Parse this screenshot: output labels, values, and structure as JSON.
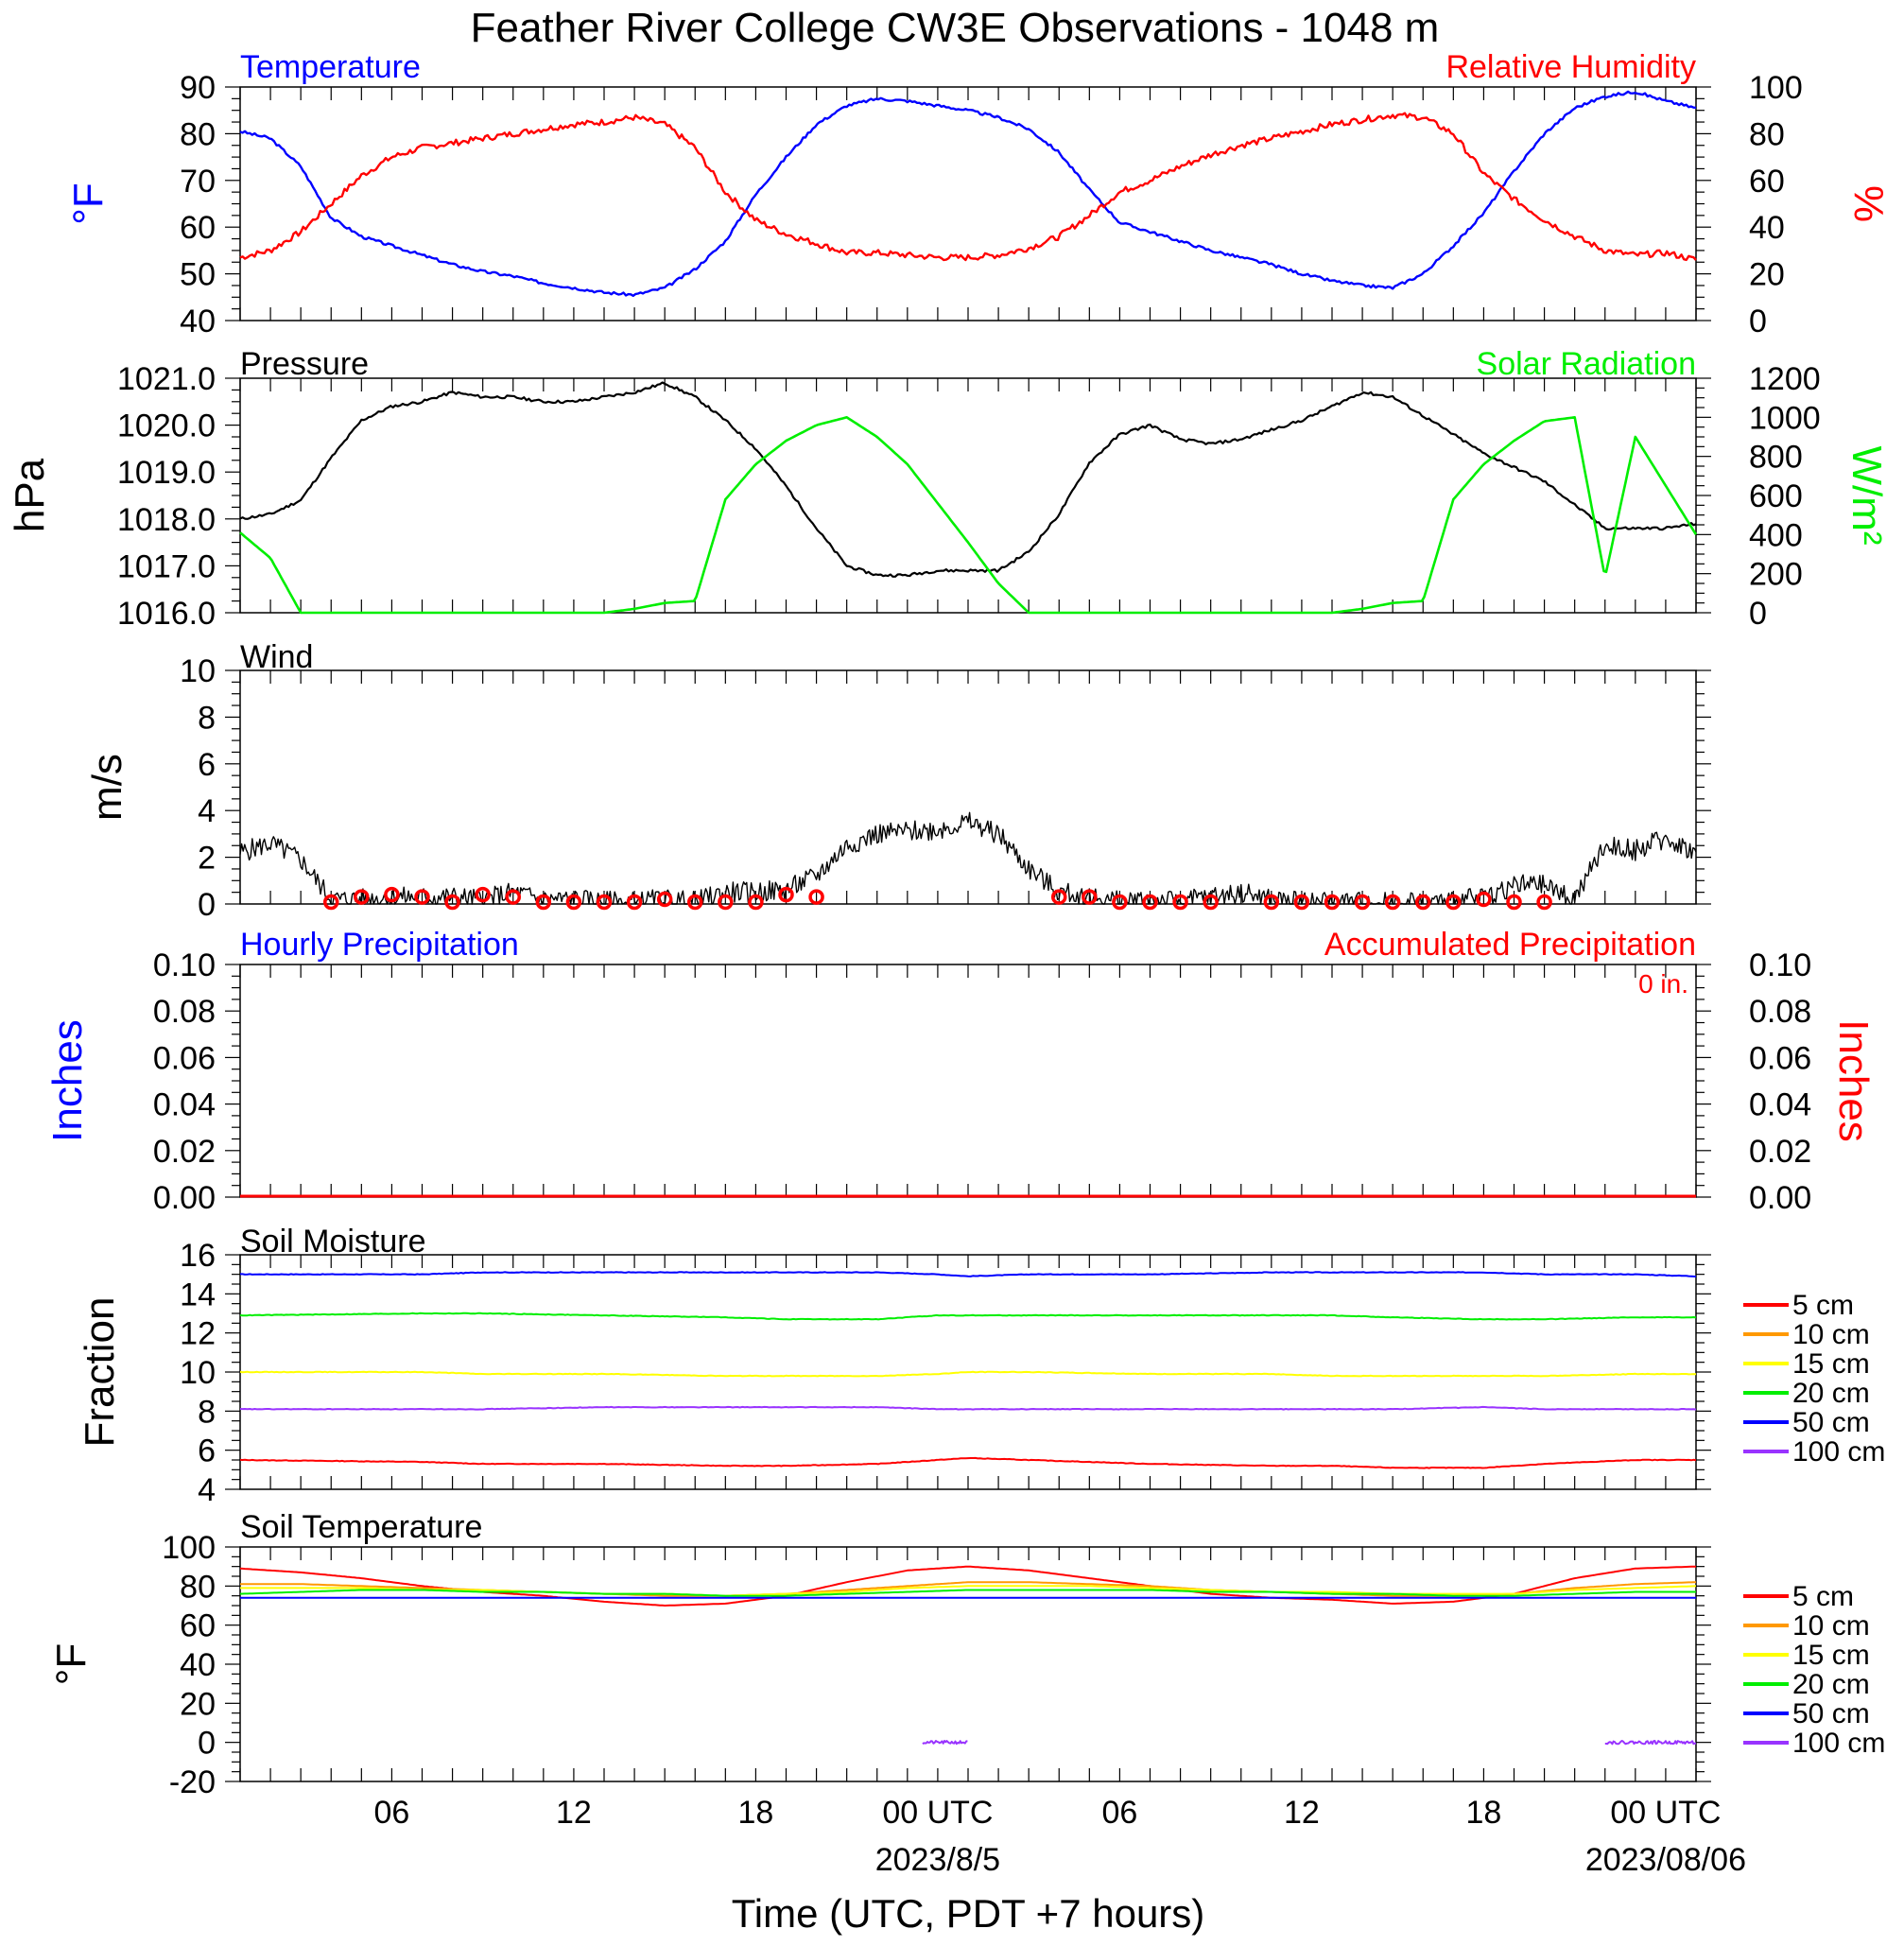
{
  "title": "Feather River College CW3E Observations - 1048 m",
  "x_axis": {
    "title": "Time (UTC, PDT +7 hours)",
    "start_hour": 1,
    "end_hour": 49,
    "tick_labels": [
      {
        "hour": 6,
        "label": "06"
      },
      {
        "hour": 12,
        "label": "12"
      },
      {
        "hour": 18,
        "label": "18"
      },
      {
        "hour": 24,
        "label": "00 UTC"
      },
      {
        "hour": 30,
        "label": "06"
      },
      {
        "hour": 36,
        "label": "12"
      },
      {
        "hour": 42,
        "label": "18"
      },
      {
        "hour": 48,
        "label": "00 UTC"
      }
    ],
    "date_labels": [
      {
        "hour": 24,
        "label": "2023/8/5"
      },
      {
        "hour": 48,
        "label": "2023/08/06"
      }
    ]
  },
  "colors": {
    "temperature": "#0000ff",
    "humidity": "#ff0000",
    "pressure": "#000000",
    "solar": "#00ee00",
    "wind": "#000000",
    "barb": "#ff0000",
    "hourly_precip": "#0000ff",
    "accum_precip": "#ff0000",
    "soil_5": "#ff0000",
    "soil_10": "#ff9900",
    "soil_15": "#ffff00",
    "soil_20": "#00ee00",
    "soil_50": "#0000ff",
    "soil_100": "#9933ff"
  },
  "panels": {
    "temp_rh": {
      "left_title": "Temperature",
      "right_title": "Relative Humidity",
      "left_unit": "°F",
      "right_unit": "%",
      "left_ticks": [
        "40",
        "50",
        "60",
        "70",
        "80",
        "90"
      ],
      "right_ticks": [
        "0",
        "20",
        "40",
        "60",
        "80",
        "100"
      ]
    },
    "pressure_solar": {
      "left_title": "Pressure",
      "right_title": "Solar Radiation",
      "left_unit": "hPa",
      "right_unit": "W/m²",
      "left_ticks": [
        "1016.0",
        "1017.0",
        "1018.0",
        "1019.0",
        "1020.0",
        "1021.0"
      ],
      "right_ticks": [
        "0",
        "200",
        "400",
        "600",
        "800",
        "1000",
        "1200"
      ]
    },
    "wind": {
      "left_title": "Wind",
      "left_unit": "m/s",
      "left_ticks": [
        "0",
        "2",
        "4",
        "6",
        "8",
        "10"
      ]
    },
    "precip": {
      "left_title": "Hourly Precipitation",
      "right_title": "Accumulated Precipitation",
      "total_label": "0 in.",
      "left_unit": "Inches",
      "right_unit": "Inches",
      "left_ticks": [
        "0.00",
        "0.02",
        "0.04",
        "0.06",
        "0.08",
        "0.10"
      ],
      "right_ticks": [
        "0.00",
        "0.02",
        "0.04",
        "0.06",
        "0.08",
        "0.10"
      ]
    },
    "soil_moisture": {
      "left_title": "Soil Moisture",
      "left_unit": "Fraction",
      "left_ticks": [
        "4",
        "6",
        "8",
        "10",
        "12",
        "14",
        "16"
      ],
      "legend": [
        "5 cm",
        "10 cm",
        "15 cm",
        "20 cm",
        "50 cm",
        "100 cm"
      ]
    },
    "soil_temp": {
      "left_title": "Soil Temperature",
      "left_unit": "°F",
      "left_ticks": [
        "-20",
        "0",
        "20",
        "40",
        "60",
        "80",
        "100"
      ],
      "legend": [
        "5 cm",
        "10 cm",
        "15 cm",
        "20 cm",
        "50 cm",
        "100 cm"
      ]
    }
  },
  "chart_data": [
    {
      "type": "line",
      "title": "Temperature / Relative Humidity",
      "x_hours": [
        1,
        2,
        3,
        4,
        5,
        6,
        7,
        8,
        9,
        10,
        11,
        12,
        13,
        14,
        15,
        16,
        17,
        18,
        19,
        20,
        21,
        22,
        23,
        24,
        25,
        26,
        27,
        28,
        29,
        30,
        31,
        32,
        33,
        34,
        35,
        36,
        37,
        38,
        39,
        40,
        41,
        42,
        43,
        44,
        45,
        46,
        47,
        48,
        49
      ],
      "series": [
        {
          "name": "Temperature",
          "axis": "left",
          "unit": "°F",
          "ylim": [
            40,
            90
          ],
          "values": [
            80.5,
            79,
            73,
            62,
            58,
            56,
            54,
            52,
            50.5,
            49.5,
            48,
            47,
            46,
            45.5,
            47,
            51,
            57,
            67,
            75,
            82,
            86,
            87.5,
            87,
            86,
            85,
            83.5,
            81,
            76,
            68,
            61,
            59,
            57,
            55,
            53.5,
            52,
            50,
            48.5,
            47.5,
            47,
            50,
            56,
            63,
            72,
            80,
            85.5,
            88,
            89,
            87,
            85.5
          ]
        },
        {
          "name": "Relative Humidity",
          "axis": "right",
          "unit": "%",
          "ylim": [
            0,
            100
          ],
          "values": [
            27,
            30,
            38,
            50,
            62,
            70,
            74,
            76,
            78,
            80,
            82,
            84,
            85,
            87,
            84,
            74,
            55,
            43,
            37,
            33,
            29,
            29,
            28,
            27,
            27,
            28,
            31,
            36,
            45,
            55,
            60,
            66,
            71,
            75,
            78,
            81,
            84,
            86,
            88,
            87,
            80,
            63,
            52,
            43,
            36,
            30,
            28,
            29,
            26
          ]
        }
      ]
    },
    {
      "type": "line",
      "title": "Pressure / Solar Radiation",
      "x_hours": [
        1,
        2,
        3,
        4,
        5,
        6,
        7,
        8,
        9,
        10,
        11,
        12,
        13,
        14,
        15,
        16,
        17,
        18,
        19,
        20,
        21,
        22,
        23,
        24,
        25,
        26,
        27,
        28,
        29,
        30,
        31,
        32,
        33,
        34,
        35,
        36,
        37,
        38,
        39,
        40,
        41,
        42,
        43,
        44,
        45,
        46,
        47,
        48,
        49
      ],
      "series": [
        {
          "name": "Pressure",
          "axis": "left",
          "unit": "hPa",
          "ylim": [
            1016.0,
            1021.0
          ],
          "values": [
            1018.0,
            1018.1,
            1018.4,
            1019.3,
            1020.1,
            1020.4,
            1020.5,
            1020.7,
            1020.6,
            1020.6,
            1020.5,
            1020.5,
            1020.6,
            1020.7,
            1020.9,
            1020.6,
            1020.1,
            1019.5,
            1018.7,
            1017.8,
            1017.0,
            1016.8,
            1016.8,
            1016.9,
            1016.9,
            1016.9,
            1017.3,
            1018.1,
            1019.2,
            1019.8,
            1020.0,
            1019.7,
            1019.6,
            1019.7,
            1019.9,
            1020.1,
            1020.4,
            1020.7,
            1020.6,
            1020.2,
            1019.8,
            1019.4,
            1019.1,
            1018.8,
            1018.3,
            1017.8,
            1017.8,
            1017.8,
            1017.9
          ]
        },
        {
          "name": "Solar Radiation",
          "axis": "right",
          "unit": "W/m²",
          "ylim": [
            0,
            1200
          ],
          "values": [
            410,
            280,
            0,
            0,
            0,
            0,
            0,
            0,
            0,
            0,
            0,
            0,
            0,
            20,
            50,
            60,
            580,
            760,
            880,
            960,
            1000,
            900,
            760,
            560,
            360,
            150,
            0,
            0,
            0,
            0,
            0,
            0,
            0,
            0,
            0,
            0,
            0,
            20,
            50,
            60,
            580,
            760,
            880,
            980,
            1000,
            180,
            900,
            650,
            400
          ]
        }
      ]
    },
    {
      "type": "line",
      "title": "Wind",
      "x_hours": [
        1,
        2,
        3,
        4,
        5,
        6,
        7,
        8,
        9,
        10,
        11,
        12,
        13,
        14,
        15,
        16,
        17,
        18,
        19,
        20,
        21,
        22,
        23,
        24,
        25,
        26,
        27,
        28,
        29,
        30,
        31,
        32,
        33,
        34,
        35,
        36,
        37,
        38,
        39,
        40,
        41,
        42,
        43,
        44,
        45,
        46,
        47,
        48,
        49
      ],
      "series": [
        {
          "name": "Wind Speed",
          "unit": "m/s",
          "ylim": [
            0,
            10
          ],
          "values": [
            2.2,
            2.6,
            1.9,
            0.2,
            0.2,
            0.3,
            0.3,
            0.3,
            0.2,
            0.5,
            0.2,
            0.2,
            0.1,
            0.1,
            0.2,
            0.1,
            0.5,
            0.5,
            0.6,
            1.2,
            2.5,
            3.0,
            3.1,
            3.2,
            3.5,
            3.0,
            1.5,
            0.5,
            0.3,
            0.1,
            0.2,
            0.1,
            0.3,
            0.5,
            0.2,
            0.1,
            0.1,
            0.1,
            0.1,
            0.1,
            0.1,
            0.3,
            0.8,
            0.8,
            0.2,
            2.5,
            2.3,
            2.8,
            2.2
          ]
        }
      ],
      "barb_hours": [
        4,
        5,
        6,
        7,
        8,
        9,
        10,
        11,
        12,
        13,
        14,
        15,
        16,
        17,
        18,
        19,
        20,
        28,
        29,
        30,
        31,
        32,
        33,
        35,
        36,
        37,
        38,
        39,
        40,
        41,
        42,
        43,
        44
      ],
      "barb_speeds": [
        0.0,
        0.3,
        0.4,
        0.3,
        0.0,
        0.4,
        0.3,
        0.0,
        0.0,
        0.0,
        0.0,
        0.2,
        0.0,
        0.0,
        0.0,
        0.4,
        0.3,
        0.3,
        0.3,
        0.0,
        0.0,
        0.0,
        0.0,
        0.0,
        0.0,
        0.0,
        0.0,
        0.0,
        0.0,
        0.0,
        0.2,
        0.0,
        0.0
      ]
    },
    {
      "type": "line",
      "title": "Precipitation",
      "x_hours": [
        1,
        49
      ],
      "series": [
        {
          "name": "Hourly Precipitation",
          "unit": "Inches",
          "ylim": [
            0,
            0.1
          ],
          "values": [
            0,
            0
          ]
        },
        {
          "name": "Accumulated Precipitation",
          "unit": "Inches",
          "ylim": [
            0,
            0.1
          ],
          "values": [
            0,
            0
          ]
        }
      ]
    },
    {
      "type": "line",
      "title": "Soil Moisture",
      "x_hours": [
        1,
        7,
        9,
        13,
        17,
        19,
        22,
        24,
        25,
        27,
        31,
        35,
        37,
        39,
        42,
        44,
        47,
        49
      ],
      "ylim": [
        4,
        16
      ],
      "series": [
        {
          "name": "5 cm",
          "values": [
            5.5,
            5.4,
            5.3,
            5.3,
            5.2,
            5.2,
            5.3,
            5.5,
            5.6,
            5.5,
            5.3,
            5.2,
            5.2,
            5.1,
            5.1,
            5.3,
            5.5,
            5.5
          ]
        },
        {
          "name": "10 cm",
          "values": [
            null
          ]
        },
        {
          "name": "15 cm",
          "values": [
            10.0,
            10.0,
            9.9,
            9.9,
            9.8,
            9.8,
            9.8,
            9.9,
            10.0,
            10.0,
            9.9,
            9.9,
            9.8,
            9.8,
            9.8,
            9.8,
            9.9,
            9.9
          ]
        },
        {
          "name": "20 cm",
          "values": [
            12.9,
            13.0,
            13.0,
            12.9,
            12.8,
            12.7,
            12.7,
            12.9,
            12.9,
            12.9,
            12.9,
            12.9,
            12.9,
            12.8,
            12.7,
            12.7,
            12.8,
            12.8
          ]
        },
        {
          "name": "50 cm",
          "values": [
            15.0,
            15.0,
            15.1,
            15.1,
            15.1,
            15.1,
            15.1,
            15.0,
            14.9,
            15.0,
            15.0,
            15.1,
            15.1,
            15.1,
            15.1,
            15.0,
            15.0,
            14.9
          ]
        },
        {
          "name": "100 cm",
          "values": [
            8.1,
            8.1,
            8.1,
            8.2,
            8.2,
            8.2,
            8.2,
            8.1,
            8.1,
            8.1,
            8.1,
            8.1,
            8.1,
            8.1,
            8.2,
            8.1,
            8.1,
            8.1
          ]
        }
      ]
    },
    {
      "type": "line",
      "title": "Soil Temperature",
      "x_hours": [
        1,
        3,
        5,
        7,
        9,
        11,
        13,
        15,
        17,
        19,
        21,
        23,
        25,
        27,
        29,
        31,
        33,
        35,
        37,
        39,
        41,
        43,
        45,
        47,
        49
      ],
      "ylim": [
        -20,
        100
      ],
      "series": [
        {
          "name": "5 cm",
          "values": [
            89,
            87,
            84,
            80,
            77,
            75,
            72,
            70,
            71,
            75,
            82,
            88,
            90,
            88,
            84,
            80,
            76,
            74,
            73,
            71,
            72,
            76,
            84,
            89,
            90
          ]
        },
        {
          "name": "10 cm",
          "values": [
            81,
            81,
            80,
            79,
            78,
            77,
            76,
            75,
            75,
            76,
            78,
            80,
            82,
            82,
            81,
            80,
            78,
            77,
            76,
            75,
            75,
            76,
            79,
            81,
            82
          ]
        },
        {
          "name": "15 cm",
          "values": [
            79,
            79,
            79,
            78,
            78,
            77,
            76,
            76,
            75,
            76,
            77,
            79,
            80,
            80,
            80,
            79,
            78,
            77,
            77,
            76,
            76,
            76,
            78,
            79,
            80
          ]
        },
        {
          "name": "20 cm",
          "values": [
            76,
            77,
            78,
            78,
            77,
            77,
            76,
            76,
            75,
            75,
            76,
            77,
            78,
            78,
            78,
            78,
            77,
            77,
            76,
            76,
            75,
            75,
            76,
            77,
            77
          ]
        },
        {
          "name": "50 cm",
          "values": [
            74,
            74,
            74,
            74,
            74,
            74,
            74,
            74,
            74,
            74,
            74,
            74,
            74,
            74,
            74,
            74,
            74,
            74,
            74,
            74,
            74,
            74,
            74,
            74,
            74
          ]
        },
        {
          "name": "100 cm",
          "segments": [
            {
              "x_hours": [
                23.5,
                25
              ],
              "values": [
                0,
                0
              ]
            },
            {
              "x_hours": [
                46,
                49
              ],
              "values": [
                0,
                0
              ]
            }
          ]
        }
      ]
    }
  ]
}
